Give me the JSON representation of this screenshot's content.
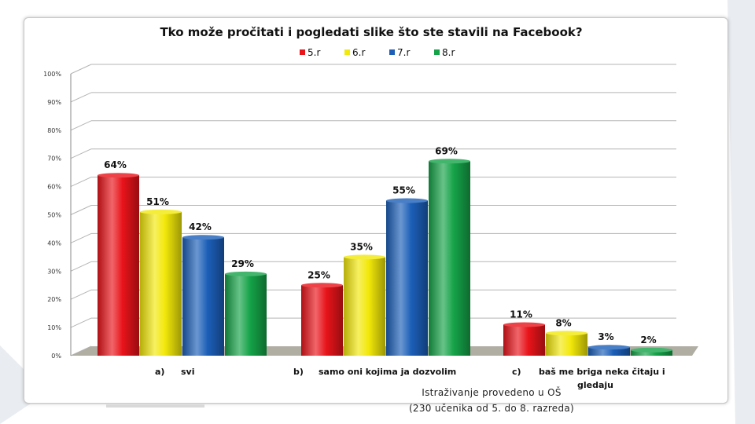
{
  "chart_data": {
    "type": "bar",
    "title": "Tko može pročitati i pogledati slike što ste stavili na Facebook?",
    "categories": [
      [
        "a)",
        "svi"
      ],
      [
        "b)",
        "samo oni kojima ja dozvolim"
      ],
      [
        "c)",
        "baš me briga neka čitaju i",
        "gledaju"
      ]
    ],
    "series": [
      {
        "name": "5.r",
        "values": [
          64,
          25,
          11
        ],
        "color": "#e8141a"
      },
      {
        "name": "6.r",
        "values": [
          51,
          35,
          8
        ],
        "color": "#f2e80a"
      },
      {
        "name": "7.r",
        "values": [
          42,
          55,
          3
        ],
        "color": "#1c5fb8"
      },
      {
        "name": "8.r",
        "values": [
          29,
          69,
          2
        ],
        "color": "#15a348"
      }
    ],
    "value_suffix": "%",
    "yticks": [
      "0%",
      "10%",
      "20%",
      "30%",
      "40%",
      "50%",
      "60%",
      "70%",
      "80%",
      "90%",
      "100%"
    ],
    "ylim": [
      0,
      100
    ],
    "grid": true,
    "legend_position": "top-center"
  },
  "footnote": {
    "line1": "Istraživanje provedeno u OŠ",
    "line2": "(230 učenika od 5. do 8. razreda)"
  },
  "colors": {
    "background_accent": "#e6e9ee",
    "floor": "#b0ada3",
    "grid": "#b5b5b5"
  }
}
